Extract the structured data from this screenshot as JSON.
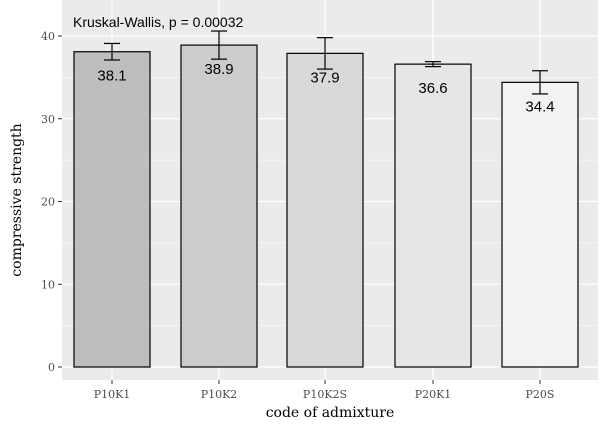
{
  "chart_data": {
    "type": "bar",
    "annotation": "Kruskal-Wallis, p = 0.00032",
    "xlabel": "code of admixture",
    "ylabel": "compressive strength",
    "categories": [
      "P10K1",
      "P10K2",
      "P10K2S",
      "P20K1",
      "P20S"
    ],
    "values": [
      38.1,
      38.9,
      37.9,
      36.6,
      34.4
    ],
    "value_labels": [
      "38.1",
      "38.9",
      "37.9",
      "36.6",
      "34.4"
    ],
    "error_low": [
      37.1,
      37.2,
      36.0,
      36.3,
      33.0
    ],
    "error_high": [
      39.1,
      40.6,
      39.8,
      36.9,
      35.8
    ],
    "ylim": [
      0,
      41
    ],
    "yticks": [
      0,
      10,
      20,
      30,
      40
    ],
    "ytick_labels": [
      "0",
      "10",
      "20",
      "30",
      "40"
    ],
    "grid": true,
    "colors": {
      "panel_background": "#ebebeb",
      "gridline": "#ffffff",
      "bar_outline": "#000000",
      "bar_fills": [
        "#bebebe",
        "#cccccc",
        "#d9d9d9",
        "#e6e6e6",
        "#f2f2f2"
      ]
    }
  }
}
